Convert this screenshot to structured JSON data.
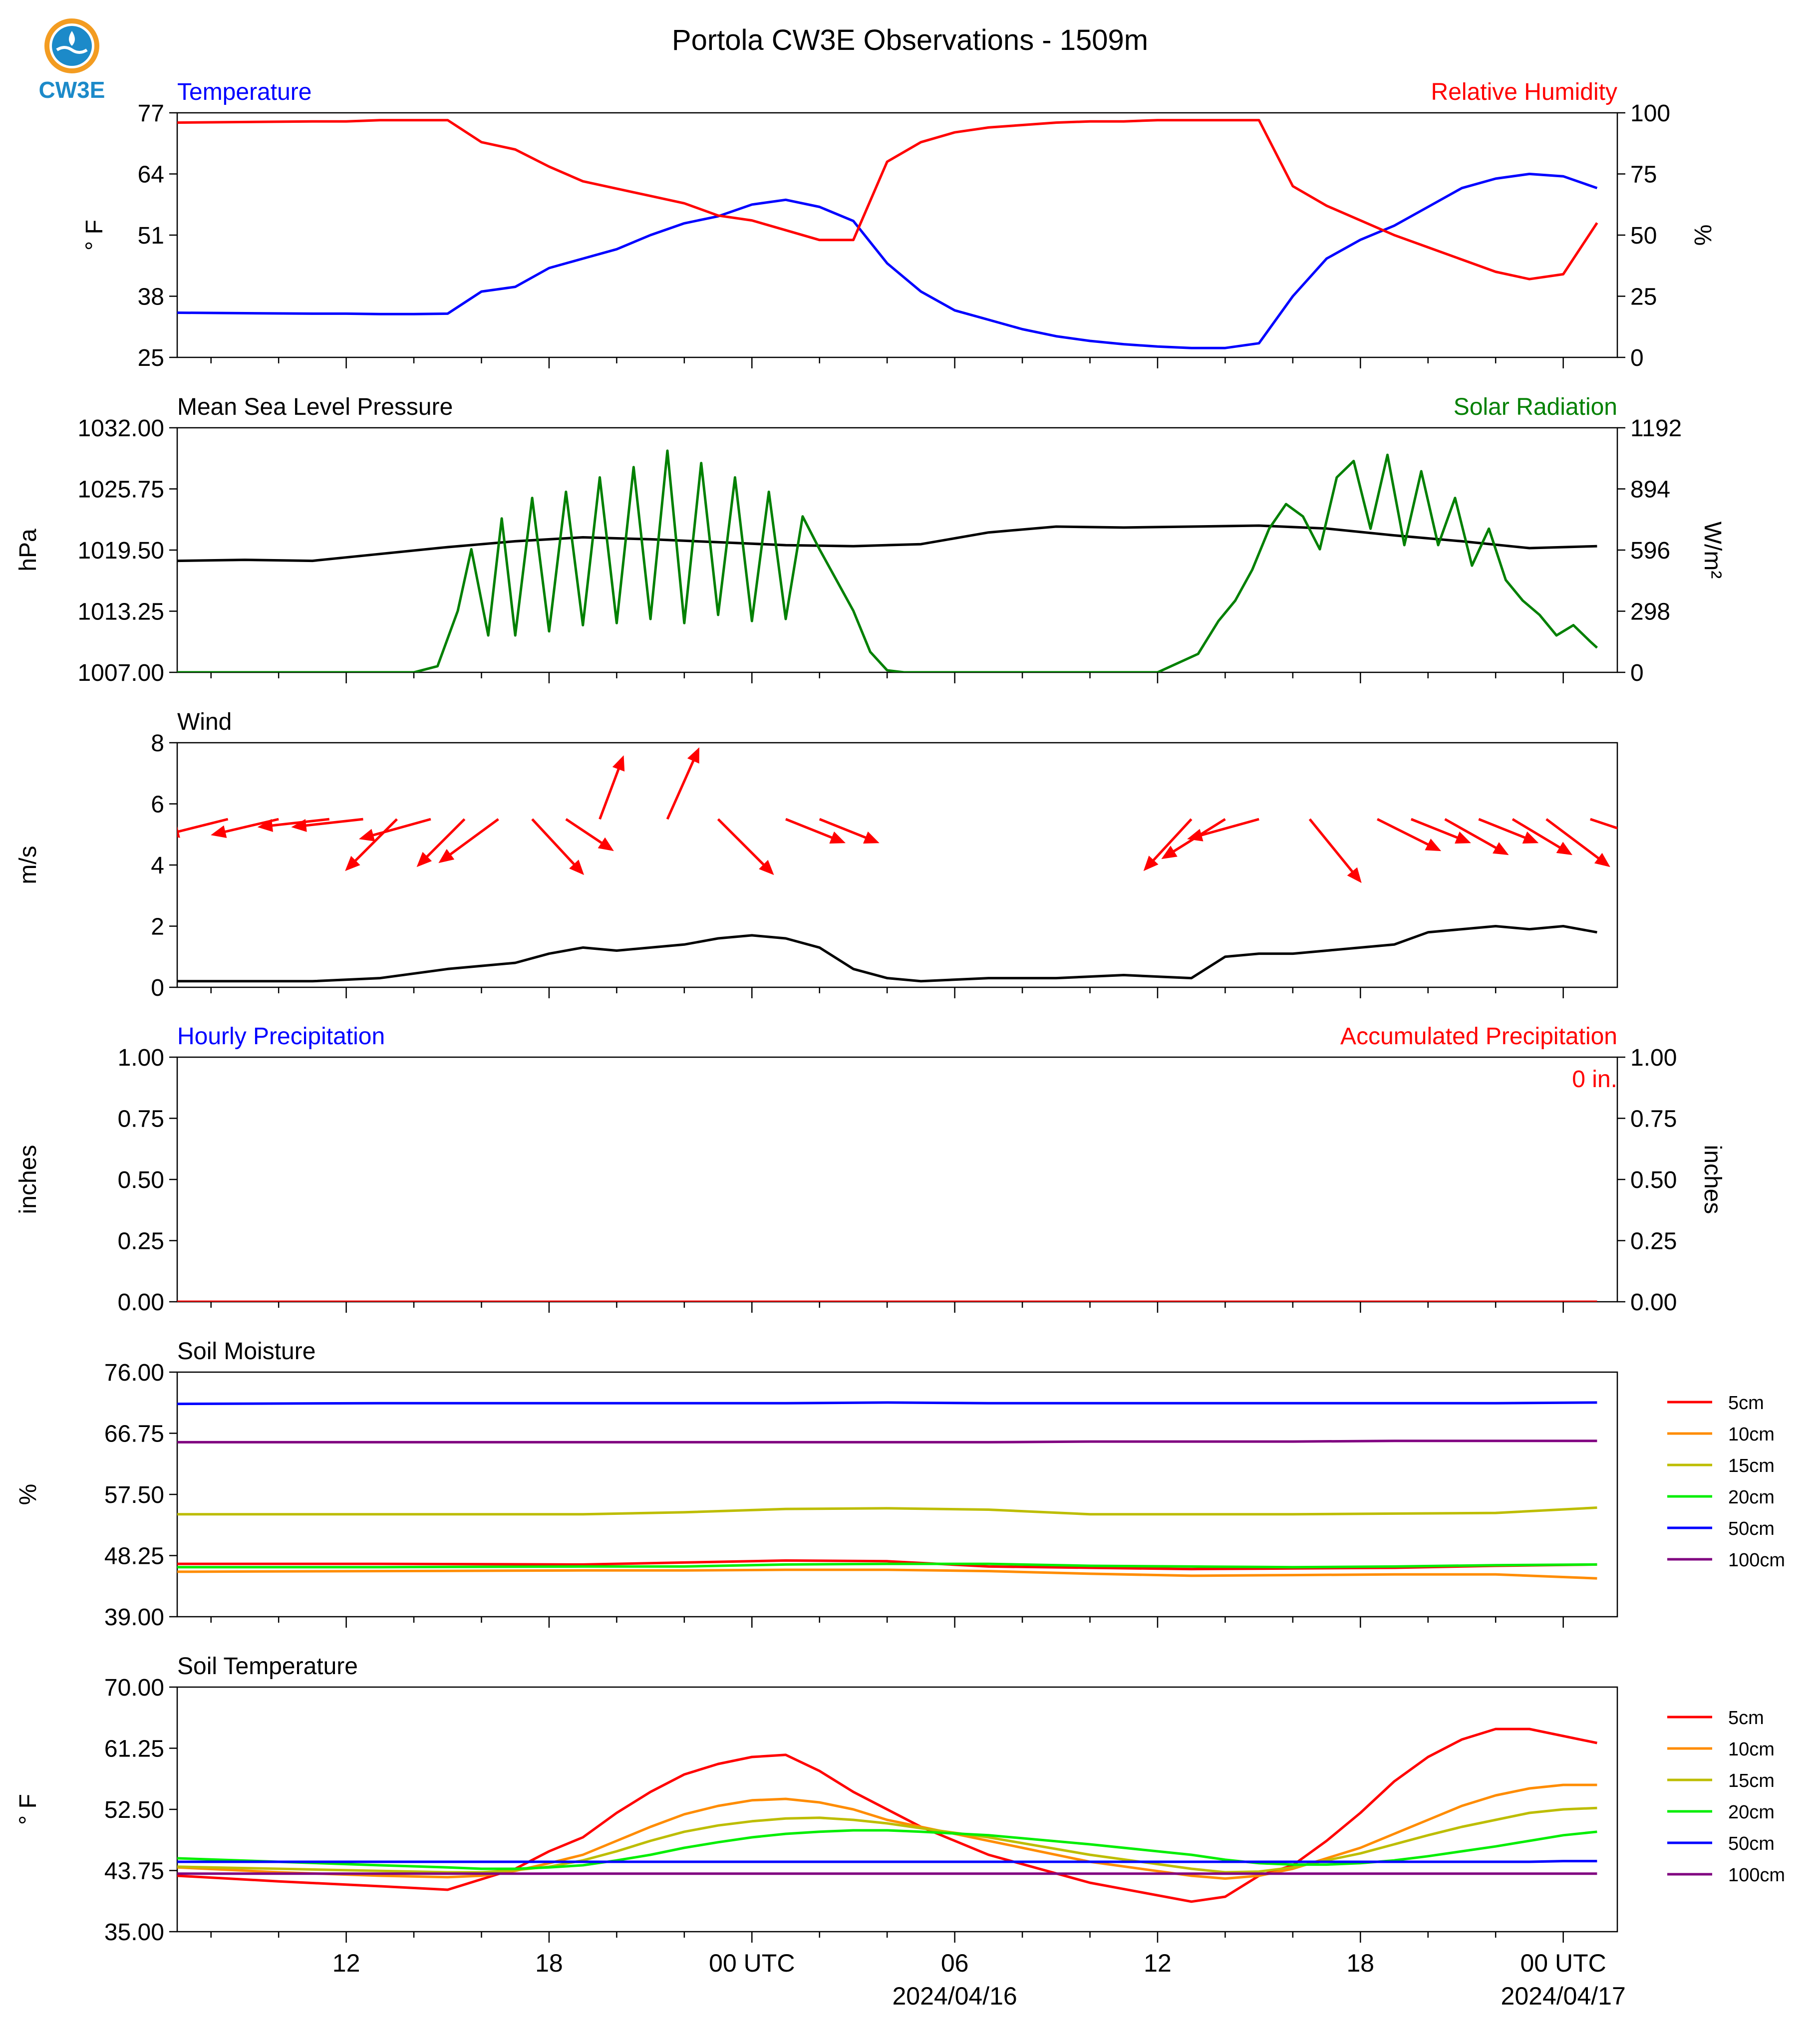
{
  "figure": {
    "title": "Portola CW3E Observations - 1509m",
    "logo_text": "CW3E",
    "x_ticks": [
      "12",
      "18",
      "00 UTC",
      "06",
      "12",
      "18",
      "00 UTC"
    ],
    "x_dates": [
      "2024/04/16",
      "2024/04/17"
    ]
  },
  "colors": {
    "blue": "#0000ff",
    "red": "#ff0000",
    "black": "#000000",
    "green": "#008000",
    "orange": "#ff8c00",
    "olive": "#bdbd00",
    "lime": "#00ee00",
    "purple": "#800080",
    "logo_orange": "#f39c21",
    "logo_blue": "#1c8ac9"
  },
  "chart_data": [
    {
      "type": "line",
      "left_title": "Temperature",
      "right_title": "Relative Humidity",
      "ylabel": "° F",
      "y2label": "%",
      "ylim": [
        25,
        77
      ],
      "y2lim": [
        0,
        100
      ],
      "yticks": [
        "25",
        "38",
        "51",
        "64",
        "77"
      ],
      "y2ticks": [
        "0",
        "25",
        "50",
        "75",
        "100"
      ],
      "x_hours": [
        0,
        4,
        5,
        6,
        7,
        8,
        9,
        10,
        11,
        12,
        13,
        14,
        15,
        16,
        17,
        18,
        19,
        20,
        21,
        22,
        23,
        24,
        25,
        26,
        27,
        28,
        29,
        30,
        31,
        32,
        33,
        34,
        35,
        36,
        37,
        38,
        39,
        40,
        41,
        42
      ],
      "series": [
        {
          "name": "Temperature",
          "axis": "left",
          "color": "blue",
          "values": [
            34.5,
            34.3,
            34.3,
            34.2,
            34.2,
            34.3,
            39,
            40,
            44,
            46,
            48,
            51,
            53.5,
            55,
            57.5,
            58.5,
            57,
            54,
            45,
            39,
            35,
            33,
            31,
            29.5,
            28.5,
            27.8,
            27.3,
            27,
            27,
            28,
            38,
            46,
            50,
            53,
            57,
            61,
            63,
            64,
            63.5,
            61
          ]
        },
        {
          "name": "Relative Humidity",
          "axis": "right",
          "color": "red",
          "values": [
            96,
            96.5,
            96.5,
            97,
            97,
            97,
            88,
            85,
            78,
            72,
            69,
            66,
            63,
            58,
            56,
            52,
            48,
            48,
            80,
            88,
            92,
            94,
            95,
            96,
            96.5,
            96.5,
            97,
            97,
            97,
            97,
            70,
            62,
            56,
            50,
            45,
            40,
            35,
            32,
            34,
            55
          ]
        }
      ]
    },
    {
      "type": "line",
      "left_title": "Mean Sea Level Pressure",
      "right_title": "Solar Radiation",
      "ylabel": "hPa",
      "y2label": "W/m²",
      "ylim": [
        1007.0,
        1032.0
      ],
      "y2lim": [
        0,
        1192
      ],
      "yticks": [
        "1007.00",
        "1013.25",
        "1019.50",
        "1025.75",
        "1032.00"
      ],
      "y2ticks": [
        "0",
        "298",
        "596",
        "894",
        "1192"
      ],
      "series": [
        {
          "name": "Mean Sea Level Pressure",
          "axis": "left",
          "color": "black",
          "x_hours": [
            0,
            2,
            4,
            6,
            8,
            10,
            12,
            14,
            16,
            18,
            20,
            22,
            24,
            26,
            28,
            30,
            32,
            34,
            36,
            38,
            40,
            42
          ],
          "values": [
            1018.4,
            1018.5,
            1018.4,
            1019.1,
            1019.8,
            1020.4,
            1020.8,
            1020.6,
            1020.3,
            1020.0,
            1019.9,
            1020.1,
            1021.3,
            1021.9,
            1021.8,
            1021.9,
            1022.0,
            1021.7,
            1021.0,
            1020.4,
            1019.7,
            1019.9
          ]
        },
        {
          "name": "Solar Radiation",
          "axis": "right",
          "color": "green",
          "x_hours": [
            0,
            7,
            7.7,
            8.3,
            8.7,
            9.2,
            9.6,
            10,
            10.5,
            11,
            11.5,
            12,
            12.5,
            13,
            13.5,
            14,
            14.5,
            15,
            15.5,
            16,
            16.5,
            17,
            17.5,
            18,
            18.5,
            19,
            19.5,
            20,
            20.5,
            21,
            21.5,
            22,
            22.5,
            23,
            24,
            29,
            30.2,
            30.8,
            31.3,
            31.8,
            32.3,
            32.8,
            33.3,
            33.8,
            34.3,
            34.8,
            35.3,
            35.8,
            36.3,
            36.8,
            37.3,
            37.8,
            38.3,
            38.8,
            39.3,
            39.8,
            40.3,
            40.8,
            41.3,
            41.8,
            42
          ],
          "values": [
            0,
            0,
            30,
            300,
            600,
            180,
            750,
            180,
            850,
            200,
            880,
            230,
            950,
            240,
            1000,
            260,
            1080,
            240,
            1020,
            280,
            950,
            250,
            880,
            260,
            760,
            600,
            450,
            300,
            100,
            10,
            0,
            0,
            0,
            0,
            0,
            0,
            90,
            250,
            350,
            500,
            700,
            820,
            760,
            600,
            950,
            1030,
            700,
            1060,
            620,
            980,
            620,
            850,
            520,
            700,
            450,
            350,
            280,
            180,
            230,
            150,
            120
          ]
        }
      ]
    },
    {
      "type": "line",
      "left_title": "Wind",
      "ylabel": "m/s",
      "ylim": [
        0,
        8
      ],
      "yticks": [
        "0",
        "2",
        "4",
        "6",
        "8"
      ],
      "series": [
        {
          "name": "Wind",
          "color": "black",
          "x_hours": [
            0,
            4,
            6,
            8,
            9,
            10,
            11,
            12,
            13,
            14,
            15,
            16,
            17,
            18,
            19,
            20,
            21,
            22,
            24,
            26,
            28,
            30,
            31,
            32,
            33,
            34,
            35,
            36,
            37,
            38,
            39,
            40,
            41,
            42
          ],
          "values": [
            0.2,
            0.2,
            0.3,
            0.6,
            0.7,
            0.8,
            1.1,
            1.3,
            1.2,
            1.3,
            1.4,
            1.6,
            1.7,
            1.6,
            1.3,
            0.6,
            0.3,
            0.2,
            0.3,
            0.3,
            0.4,
            0.3,
            1.0,
            1.1,
            1.1,
            1.2,
            1.3,
            1.4,
            1.8,
            1.9,
            2.0,
            1.9,
            2.0,
            1.8
          ]
        }
      ],
      "arrows": {
        "color": "red",
        "x_hours": [
          1.5,
          3,
          4.5,
          5.5,
          6.5,
          7.5,
          8.5,
          9.5,
          10.5,
          11.5,
          12.5,
          14.5,
          16,
          18,
          19,
          30,
          31,
          32,
          33.5,
          35.5,
          36.5,
          37.5,
          38.5,
          39.5,
          40.5,
          41.8
        ],
        "u": [
          -1.6,
          -1.7,
          -1.8,
          -1.8,
          -1.3,
          -1.8,
          -1.2,
          -1.5,
          1.3,
          1.2,
          0.6,
          0.8,
          1.4,
          1.5,
          1.5,
          -1.2,
          -1.6,
          -1.8,
          1.3,
          1.6,
          1.5,
          1.6,
          1.5,
          1.5,
          1.6,
          1.5
        ],
        "v": [
          -0.4,
          -0.4,
          -0.2,
          -0.2,
          -1.3,
          -0.5,
          -1.2,
          -1.1,
          -1.4,
          -0.8,
          1.6,
          1.8,
          -1.4,
          -0.6,
          -0.6,
          -1.3,
          -1.0,
          -0.5,
          -1.6,
          -0.8,
          -0.6,
          -0.9,
          -0.6,
          -0.9,
          -1.2,
          -0.5
        ]
      }
    },
    {
      "type": "line",
      "left_title": "Hourly Precipitation",
      "right_title": "Accumulated Precipitation",
      "ylabel": "inches",
      "y2label": "inches",
      "ylim": [
        0,
        1
      ],
      "y2lim": [
        0,
        1
      ],
      "yticks": [
        "0.00",
        "0.25",
        "0.50",
        "0.75",
        "1.00"
      ],
      "y2ticks": [
        "0.00",
        "0.25",
        "0.50",
        "0.75",
        "1.00"
      ],
      "annotation": "0 in.",
      "series": [
        {
          "name": "Hourly Precipitation",
          "color": "blue",
          "x_hours": [
            0,
            42
          ],
          "values": [
            0,
            0
          ]
        },
        {
          "name": "Accumulated Precipitation",
          "color": "red",
          "x_hours": [
            0,
            42
          ],
          "values": [
            0,
            0
          ]
        }
      ]
    },
    {
      "type": "line",
      "left_title": "Soil Moisture",
      "ylabel": "%",
      "ylim": [
        39.0,
        76.0
      ],
      "yticks": [
        "39.00",
        "48.25",
        "57.50",
        "66.75",
        "76.00"
      ],
      "x_hours": [
        0,
        6,
        12,
        15,
        18,
        21,
        24,
        27,
        30,
        33,
        36,
        39,
        42
      ],
      "series": [
        {
          "name": "5cm",
          "color": "red",
          "values": [
            47.0,
            47.0,
            46.9,
            47.2,
            47.5,
            47.4,
            46.6,
            46.4,
            46.2,
            46.3,
            46.4,
            46.7,
            46.9
          ]
        },
        {
          "name": "10cm",
          "color": "orange",
          "values": [
            45.8,
            45.9,
            46.0,
            46.0,
            46.1,
            46.1,
            45.9,
            45.5,
            45.2,
            45.3,
            45.4,
            45.4,
            44.8
          ]
        },
        {
          "name": "15cm",
          "color": "olive",
          "values": [
            54.5,
            54.5,
            54.5,
            54.8,
            55.3,
            55.4,
            55.2,
            54.5,
            54.5,
            54.5,
            54.6,
            54.7,
            55.5
          ]
        },
        {
          "name": "20cm",
          "color": "lime",
          "values": [
            46.5,
            46.5,
            46.6,
            46.6,
            46.9,
            47.0,
            47.0,
            46.7,
            46.6,
            46.5,
            46.6,
            46.8,
            46.9
          ]
        },
        {
          "name": "50cm",
          "color": "blue",
          "values": [
            71.2,
            71.3,
            71.3,
            71.3,
            71.3,
            71.4,
            71.3,
            71.3,
            71.3,
            71.3,
            71.3,
            71.3,
            71.4
          ]
        },
        {
          "name": "100cm",
          "color": "purple",
          "values": [
            65.4,
            65.4,
            65.4,
            65.4,
            65.4,
            65.4,
            65.4,
            65.5,
            65.5,
            65.5,
            65.6,
            65.6,
            65.6
          ]
        }
      ]
    },
    {
      "type": "line",
      "left_title": "Soil Temperature",
      "ylabel": "° F",
      "ylim": [
        35.0,
        70.0
      ],
      "yticks": [
        "35.00",
        "43.75",
        "52.50",
        "61.25",
        "70.00"
      ],
      "x_hours": [
        0,
        3,
        6,
        8,
        9,
        10,
        11,
        12,
        13,
        14,
        15,
        16,
        17,
        18,
        19,
        20,
        21,
        22,
        24,
        27,
        30,
        31,
        32,
        33,
        34,
        35,
        36,
        37,
        38,
        39,
        40,
        41,
        42
      ],
      "series": [
        {
          "name": "5cm",
          "color": "red",
          "values": [
            43.0,
            42.2,
            41.5,
            41.0,
            42.5,
            44.0,
            46.5,
            48.5,
            52.0,
            55.0,
            57.5,
            59.0,
            60.0,
            60.3,
            58.0,
            55.0,
            52.5,
            50.0,
            46.0,
            42.0,
            39.3,
            40.0,
            43.0,
            44.5,
            48.0,
            52.0,
            56.5,
            60.0,
            62.5,
            64.0,
            64.0,
            63.0,
            62.0
          ]
        },
        {
          "name": "10cm",
          "color": "orange",
          "values": [
            44.2,
            43.5,
            43.0,
            42.8,
            43.0,
            43.7,
            44.8,
            46.0,
            48.0,
            50.0,
            51.8,
            53.0,
            53.8,
            54.0,
            53.5,
            52.5,
            51.0,
            50.0,
            48.0,
            45.0,
            43.0,
            42.6,
            43.0,
            44.0,
            45.5,
            47.0,
            49.0,
            51.0,
            53.0,
            54.5,
            55.5,
            56.0,
            56.0
          ]
        },
        {
          "name": "15cm",
          "color": "olive",
          "values": [
            44.3,
            44.0,
            43.7,
            43.5,
            43.5,
            43.8,
            44.3,
            45.2,
            46.5,
            48.0,
            49.3,
            50.2,
            50.8,
            51.2,
            51.3,
            51.0,
            50.5,
            49.8,
            48.5,
            46.0,
            44.0,
            43.5,
            43.6,
            44.2,
            45.2,
            46.2,
            47.5,
            48.8,
            50.0,
            51.0,
            52.0,
            52.5,
            52.7
          ]
        },
        {
          "name": "20cm",
          "color": "lime",
          "values": [
            45.5,
            45.0,
            44.5,
            44.2,
            44.0,
            44.0,
            44.2,
            44.5,
            45.2,
            46.0,
            47.0,
            47.8,
            48.5,
            49.0,
            49.3,
            49.5,
            49.5,
            49.3,
            48.8,
            47.5,
            46.0,
            45.3,
            44.8,
            44.6,
            44.6,
            44.8,
            45.2,
            45.8,
            46.5,
            47.2,
            48.0,
            48.8,
            49.3
          ]
        },
        {
          "name": "50cm",
          "color": "blue",
          "values": [
            45.0,
            45.0,
            45.0,
            45.0,
            45.0,
            45.0,
            45.0,
            45.0,
            45.0,
            45.0,
            45.0,
            45.0,
            45.0,
            45.0,
            45.0,
            45.0,
            45.0,
            45.0,
            45.0,
            45.0,
            45.0,
            45.0,
            45.0,
            45.0,
            45.0,
            45.0,
            45.0,
            45.0,
            45.0,
            45.0,
            45.0,
            45.1,
            45.1
          ]
        },
        {
          "name": "100cm",
          "color": "purple",
          "values": [
            43.3,
            43.3,
            43.3,
            43.3,
            43.3,
            43.3,
            43.3,
            43.3,
            43.3,
            43.3,
            43.3,
            43.3,
            43.3,
            43.3,
            43.3,
            43.3,
            43.3,
            43.3,
            43.3,
            43.3,
            43.3,
            43.3,
            43.3,
            43.3,
            43.3,
            43.3,
            43.3,
            43.3,
            43.3,
            43.3,
            43.3,
            43.3,
            43.3
          ]
        }
      ]
    }
  ]
}
